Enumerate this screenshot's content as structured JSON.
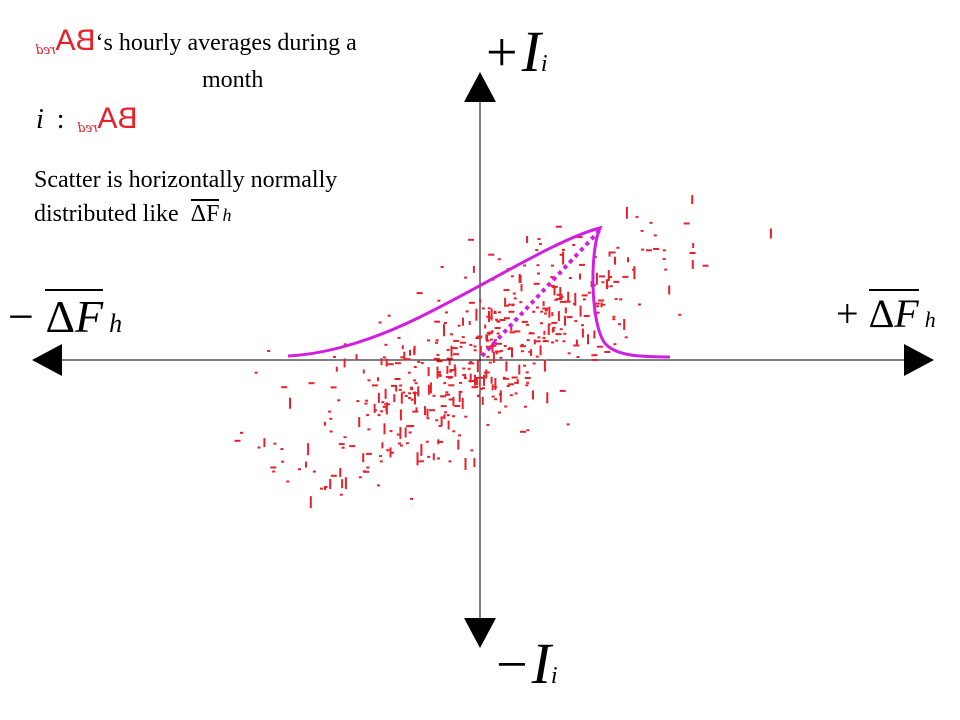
{
  "title": {
    "prefix_symbol": "BA",
    "prefix_subscript": "red",
    "text_line1": "‘s hourly averages during a",
    "text_line2": "month"
  },
  "mapping": {
    "index": "i",
    "separator": ":",
    "symbol": "BA",
    "subscript": "red"
  },
  "note": {
    "line1": "Scatter is horizontally normally",
    "line2": "distributed like",
    "symbol_delta": "Δ",
    "symbol_f": "F",
    "symbol_sub": "h"
  },
  "axes": {
    "y_positive": {
      "sign": "+",
      "symbol": "I",
      "subscript": "i"
    },
    "y_negative": {
      "sign": "−",
      "symbol": "I",
      "subscript": "i"
    },
    "x_positive": {
      "sign": "+",
      "delta": "Δ",
      "symbol": "F",
      "subscript": "h"
    },
    "x_negative": {
      "sign": "−",
      "delta": "Δ",
      "symbol": "F",
      "subscript": "h"
    }
  },
  "colors": {
    "scatter": "#e8202a",
    "curve": "#d21ee0",
    "axis": "#000000"
  }
}
